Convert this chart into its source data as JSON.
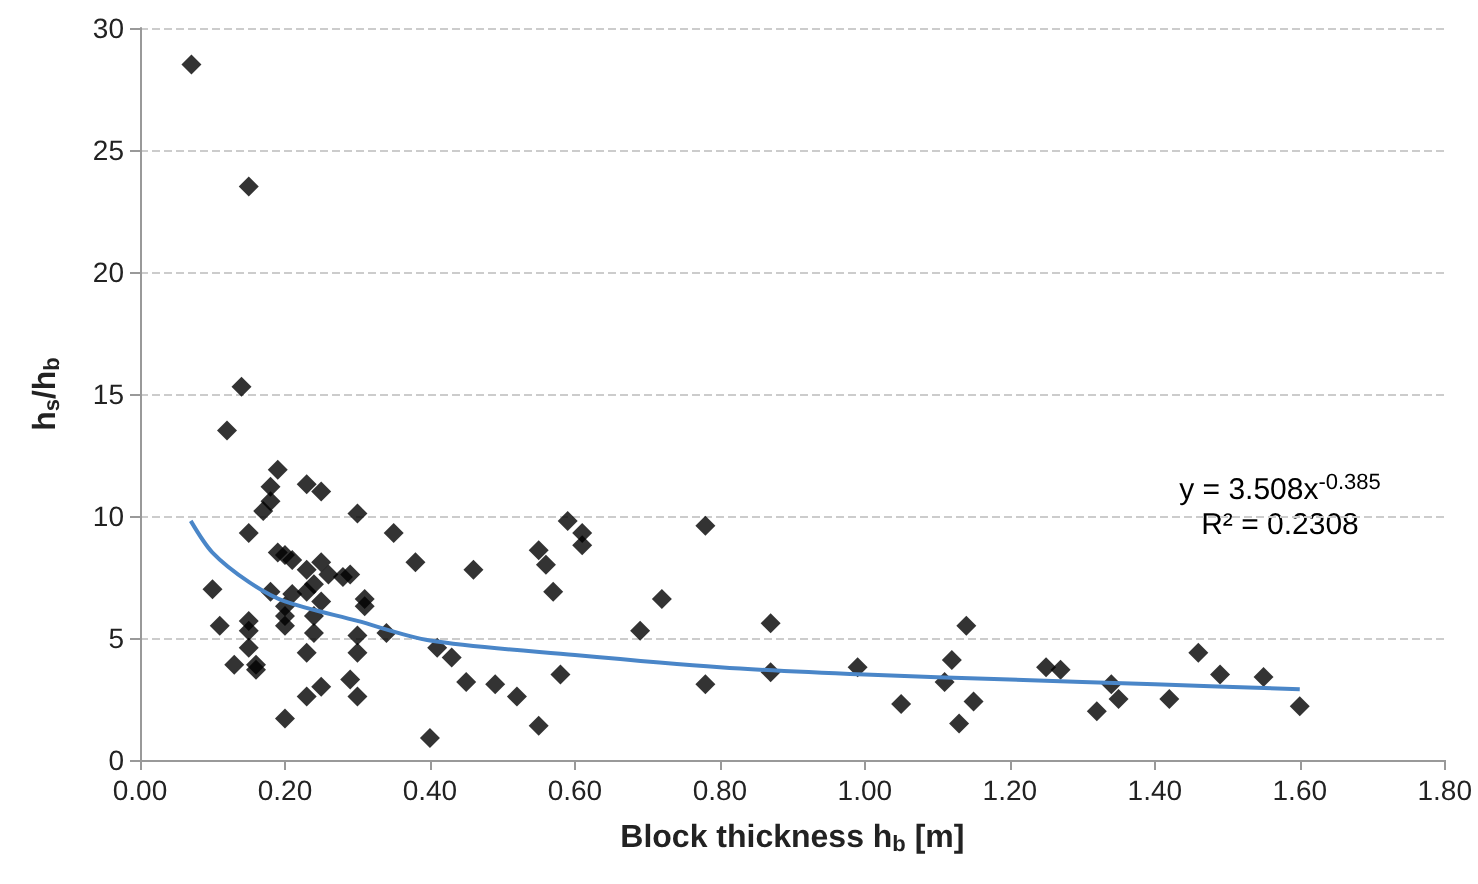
{
  "chart_data": {
    "type": "scatter",
    "xlabel": "Block thickness h$_{b}$ [m]",
    "ylabel": "h$_{s}$/h$_{b}$",
    "annotations": [
      "y = 3.508x$^{-0.385}$",
      "R² = 0.2308"
    ],
    "series": [
      {
        "color": "#000000",
        "x": [
          0.071,
          0.15,
          0.14,
          0.12,
          0.19,
          0.18,
          0.18,
          0.17,
          0.23,
          0.25,
          0.3,
          0.15,
          0.35,
          0.38,
          0.46,
          0.19,
          0.2,
          0.21,
          0.23,
          0.25,
          0.26,
          0.28,
          0.29,
          0.1,
          0.18,
          0.21,
          0.23,
          0.24,
          0.25,
          0.31,
          0.31,
          0.2,
          0.2,
          0.2,
          0.11,
          0.15,
          0.15,
          0.24,
          0.24,
          0.3,
          0.34,
          0.15,
          0.23,
          0.3,
          0.41,
          0.43,
          0.13,
          0.16,
          0.16,
          0.29,
          0.45,
          0.49,
          0.25,
          0.23,
          0.3,
          0.2,
          0.4,
          0.52,
          0.55,
          0.55,
          0.56,
          0.57,
          0.58,
          0.59,
          0.61,
          0.61,
          0.69,
          0.72,
          0.78,
          0.78,
          0.87,
          0.87,
          0.99,
          1.05,
          1.11,
          1.12,
          1.14,
          1.13,
          1.15,
          1.25,
          1.27,
          1.32,
          1.34,
          1.35,
          1.42,
          1.46,
          1.49,
          1.55,
          1.6
        ],
        "values": [
          28.5,
          23.5,
          15.3,
          13.5,
          11.9,
          11.2,
          10.6,
          10.2,
          11.3,
          11.0,
          10.1,
          9.3,
          9.3,
          8.1,
          7.8,
          8.5,
          8.4,
          8.2,
          7.8,
          8.1,
          7.6,
          7.5,
          7.6,
          7.0,
          6.9,
          6.8,
          6.9,
          7.2,
          6.5,
          6.6,
          6.3,
          6.3,
          5.9,
          5.5,
          5.5,
          5.7,
          5.3,
          5.9,
          5.2,
          5.1,
          5.2,
          4.6,
          4.4,
          4.4,
          4.6,
          4.2,
          3.9,
          3.9,
          3.7,
          3.3,
          3.2,
          3.1,
          3.0,
          2.6,
          2.6,
          1.7,
          0.9,
          2.6,
          1.4,
          8.6,
          8.0,
          6.9,
          3.5,
          9.8,
          9.3,
          8.8,
          5.3,
          6.6,
          9.6,
          3.1,
          5.6,
          3.6,
          3.8,
          2.3,
          3.2,
          4.1,
          5.5,
          1.5,
          2.4,
          3.8,
          3.7,
          2.0,
          3.1,
          2.5,
          2.5,
          4.4,
          3.5,
          3.4,
          2.2
        ]
      },
      {
        "type": "line",
        "color": "#4a86c8",
        "marker": "none",
        "x": [
          0.07,
          0.1,
          0.15,
          0.2,
          0.3,
          0.4,
          0.6,
          0.8,
          1.0,
          1.2,
          1.4,
          1.6
        ],
        "values": [
          9.8,
          8.5,
          7.3,
          6.5,
          5.7,
          4.9,
          4.3,
          3.8,
          3.5,
          3.3,
          3.1,
          2.9
        ]
      }
    ],
    "xlim": [
      0,
      1.8
    ],
    "xticks": [
      {
        "value": 0,
        "label": "0.00"
      },
      {
        "value": 0.2,
        "label": "0.20"
      },
      {
        "value": 0.4,
        "label": "0.40"
      },
      {
        "value": 0.6,
        "label": "0.60"
      },
      {
        "value": 0.8,
        "label": "0.80"
      },
      {
        "value": 1.0,
        "label": "1.00"
      },
      {
        "value": 1.2,
        "label": "1.20"
      },
      {
        "value": 1.4,
        "label": "1.40"
      },
      {
        "value": 1.6,
        "label": "1.60"
      },
      {
        "value": 1.8,
        "label": "1.80"
      }
    ],
    "ylim": [
      0,
      30
    ],
    "yticks": [
      0,
      5,
      10,
      15,
      20,
      25,
      30
    ],
    "grid": "y",
    "marker": "diamond"
  }
}
